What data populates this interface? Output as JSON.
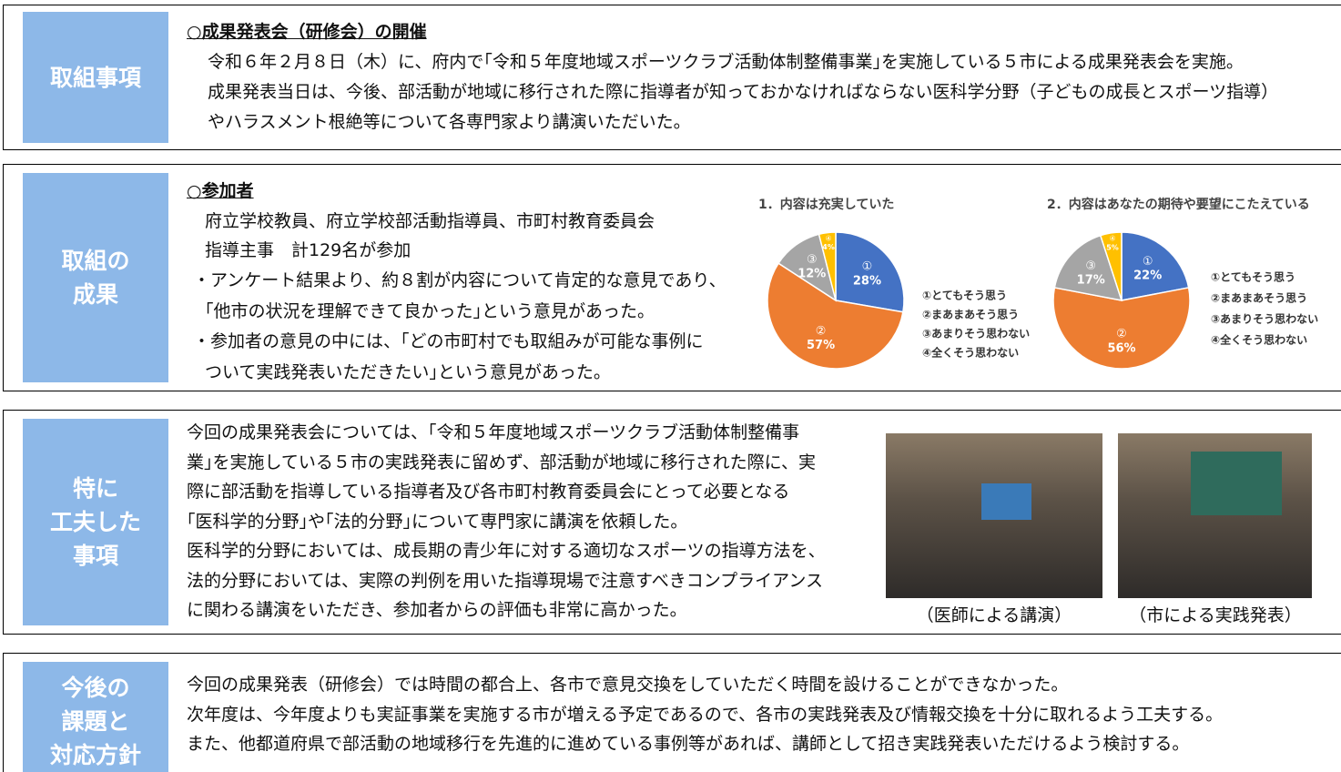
{
  "sections": [
    {
      "label_lines": [
        "取組事項"
      ],
      "heading": "○成果発表会（研修会）の開催",
      "lines": [
        "令和６年２月８日（木）に、府内で｢令和５年度地域スポーツクラブ活動体制整備事業｣を実施している５市による成果発表会を実施。",
        "成果発表当日は、今後、部活動が地域に移行された際に指導者が知っておかなければならない医科学分野（子どもの成長とスポーツ指導）",
        "やハラスメント根絶等について各専門家より講演いただいた。"
      ]
    },
    {
      "label_lines": [
        "取組の",
        "成果"
      ],
      "heading": "○参加者",
      "lines": [
        "府立学校教員、府立学校部活動指導員、市町村教育委員会",
        "指導主事　計129名が参加",
        "・アンケート結果より、約８割が内容について肯定的な意見であり、",
        "｢他市の状況を理解できて良かった｣という意見があった。",
        "・参加者の意見の中には、｢どの市町村でも取組みが可能な事例に",
        "ついて実践発表いただきたい｣という意見があった。"
      ]
    },
    {
      "label_lines": [
        "特に",
        "工夫した",
        "事項"
      ],
      "lines": [
        "今回の成果発表会については、「令和５年度地域スポーツクラブ活動体制整備事",
        "業｣を実施している５市の実践発表に留めず、部活動が地域に移行された際に、実",
        "際に部活動を指導している指導者及び各市町村教育委員会にとって必要となる",
        "｢医科学的分野｣や｢法的分野｣について専門家に講演を依頼した。",
        "医科学的分野においては、成長期の青少年に対する適切なスポーツの指導方法を、",
        "法的分野においては、実際の判例を用いた指導現場で注意すべきコンプライアンス",
        "に関わる講演をいただき、参加者からの評価も非常に高かった。"
      ],
      "captions": [
        "（医師による講演）",
        "（市による実践発表）"
      ]
    },
    {
      "label_lines": [
        "今後の",
        "課題と",
        "対応方針"
      ],
      "lines": [
        "今回の成果発表（研修会）では時間の都合上、各市で意見交換をしていただく時間を設けることができなかった。",
        "次年度は、今年度よりも実証事業を実施する市が増える予定であるので、各市の実践発表及び情報交換を十分に取れるよう工夫する。",
        "また、他都道府県で部活動の地域移行を先進的に進めている事例等があれば、講師として招き実践発表いただけるよう検討する。"
      ]
    }
  ],
  "chart_data": [
    {
      "type": "pie",
      "title": "1．内容は充実していた",
      "categories": [
        "①とてもそう思う",
        "②まあまあそう思う",
        "③あまりそう思わない",
        "④全くそう思わない"
      ],
      "slice_labels": [
        "①",
        "②",
        "③",
        "④"
      ],
      "values": [
        28,
        57,
        12,
        4
      ],
      "value_labels": [
        "28%",
        "57%",
        "12%",
        "4%"
      ],
      "colors": [
        "#4472c4",
        "#ed7d31",
        "#a5a5a5",
        "#ffc000"
      ]
    },
    {
      "type": "pie",
      "title": "2．内容はあなたの期待や要望にこたえている",
      "categories": [
        "①とてもそう思う",
        "②まあまあそう思う",
        "③あまりそう思わない",
        "④全くそう思わない"
      ],
      "slice_labels": [
        "①",
        "②",
        "③",
        "④"
      ],
      "values": [
        22,
        56,
        17,
        5
      ],
      "value_labels": [
        "22%",
        "56%",
        "17%",
        "5%"
      ],
      "colors": [
        "#4472c4",
        "#ed7d31",
        "#a5a5a5",
        "#ffc000"
      ]
    }
  ]
}
